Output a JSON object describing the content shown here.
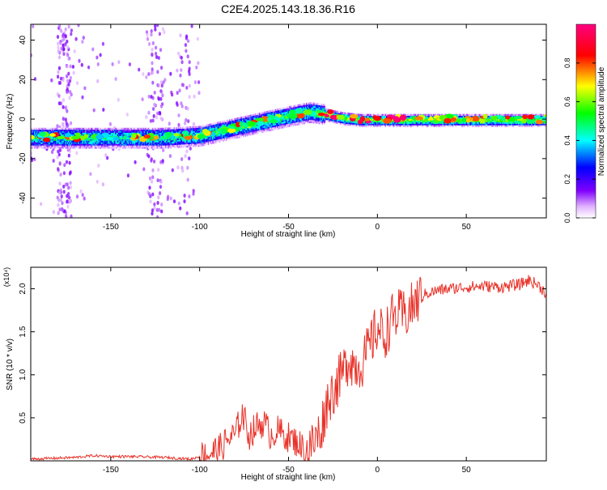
{
  "title": "C2E4.2025.143.18.36.R16",
  "chart_data": [
    {
      "type": "heatmap",
      "xlabel": "Height of straight line (km)",
      "ylabel": "Frequency (Hz)",
      "xlim": [
        -195,
        95
      ],
      "ylim": [
        -50,
        48
      ],
      "xticks": [
        -150,
        -100,
        -50,
        0,
        50
      ],
      "yticks": [
        -40,
        -20,
        0,
        20,
        40
      ],
      "colorbar": {
        "label": "Normalized spectral amplitude",
        "range": [
          0,
          1
        ],
        "ticks": [
          "0.0",
          "0.2",
          "0.4",
          "0.6",
          "0.8"
        ],
        "colors": [
          "#ffffff",
          "#8000ff",
          "#0000ff",
          "#00ffff",
          "#00ff00",
          "#ffff00",
          "#ff0000",
          "#ff0080"
        ]
      },
      "ridge": {
        "x": [
          -195,
          -150,
          -120,
          -100,
          -90,
          -80,
          -60,
          -50,
          -38,
          -30,
          -20,
          -10,
          0,
          20,
          50,
          90
        ],
        "y": [
          -9,
          -9,
          -9,
          -8,
          -6,
          -4,
          0,
          2,
          4,
          3,
          1,
          0,
          0,
          0,
          0,
          0
        ]
      }
    },
    {
      "type": "line",
      "xlabel": "Height of straight line (km)",
      "ylabel": "SNR (10 * v/v)",
      "y_multiplier": "(x10⁴)",
      "xlim": [
        -195,
        95
      ],
      "ylim": [
        0,
        2.25
      ],
      "xticks": [
        -150,
        -100,
        -50,
        0,
        50
      ],
      "yticks": [
        0.5,
        1.0,
        1.5,
        2.0
      ],
      "series": [
        {
          "color": "#e8332a",
          "x": [
            -195,
            -170,
            -160,
            -150,
            -140,
            -120,
            -105,
            -95,
            -88,
            -84,
            -80,
            -76,
            -72,
            -68,
            -64,
            -60,
            -56,
            -52,
            -48,
            -44,
            -40,
            -36,
            -32,
            -28,
            -24,
            -20,
            -16,
            -12,
            -8,
            -4,
            0,
            4,
            8,
            12,
            16,
            20,
            24,
            28,
            34,
            40,
            50,
            60,
            70,
            80,
            85,
            90,
            95
          ],
          "y": [
            0.02,
            0.04,
            0.06,
            0.05,
            0.05,
            0.04,
            0.02,
            0.08,
            0.15,
            0.25,
            0.3,
            0.55,
            0.3,
            0.4,
            0.45,
            0.3,
            0.35,
            0.3,
            0.25,
            0.2,
            0.1,
            0.2,
            0.35,
            0.7,
            0.85,
            1.0,
            1.2,
            1.1,
            1.15,
            1.35,
            1.55,
            1.45,
            1.65,
            1.7,
            1.7,
            1.8,
            1.9,
            1.95,
            1.98,
            2.0,
            2.02,
            2.03,
            2.02,
            2.05,
            2.1,
            2.05,
            1.95
          ]
        }
      ]
    }
  ]
}
